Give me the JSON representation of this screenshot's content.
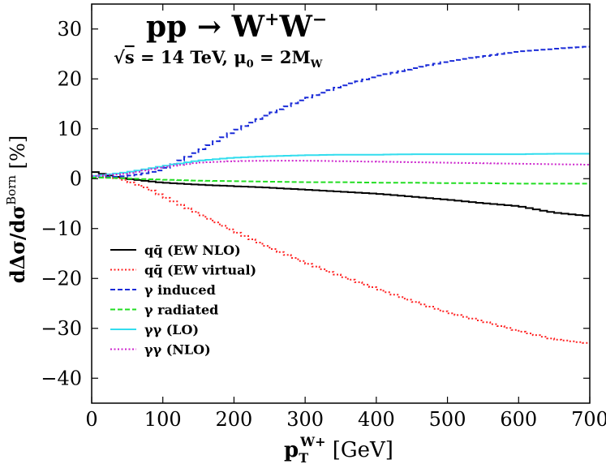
{
  "chart_data": {
    "type": "line",
    "title": "pp → W⁺W⁻",
    "subtitle": "√s = 14 TeV, μ₀ = 2M_W",
    "title_parts": {
      "main": "pp → W",
      "sup1": "+",
      "mid": "W",
      "sup2": "−"
    },
    "subtitle_parts": {
      "root": "√",
      "s": "s",
      "rest": " = 14 TeV, μ",
      "sub0": "0",
      "eq": " = 2M",
      "subW": "W"
    },
    "xlabel": "p_T^{W+} [GeV]",
    "ylabel": "dΔσ/dσ^Born [%]",
    "xlabel_parts": {
      "p": "p",
      "sub": "T",
      "sup": "W+",
      "unit": " [GeV]"
    },
    "ylabel_parts": {
      "d1": "dΔσ/dσ",
      "sup": "Born",
      "unit": " [%]"
    },
    "xlim": [
      0,
      700
    ],
    "ylim": [
      -45,
      35
    ],
    "xticks": [
      0,
      100,
      200,
      300,
      400,
      500,
      600,
      700
    ],
    "yticks": [
      -40,
      -30,
      -20,
      -10,
      0,
      10,
      20,
      30
    ],
    "xticklabels": [
      "0",
      "100",
      "200",
      "300",
      "400",
      "500",
      "600",
      "700"
    ],
    "yticklabels": [
      "−40",
      "−30",
      "−20",
      "−10",
      "0",
      "10",
      "20",
      "30"
    ],
    "legend_position": "bottom-left",
    "x": [
      0,
      20,
      40,
      60,
      80,
      100,
      150,
      200,
      250,
      300,
      350,
      400,
      450,
      500,
      550,
      600,
      650,
      700
    ],
    "series": [
      {
        "name": "qq̄ (EW NLO)",
        "color": "#000000",
        "dash": "solid",
        "values": [
          1.5,
          0.8,
          0.2,
          -0.2,
          -0.5,
          -0.8,
          -1.2,
          -1.5,
          -1.8,
          -2.2,
          -2.6,
          -3.0,
          -3.6,
          -4.2,
          -4.9,
          -5.5,
          -6.8,
          -7.5
        ]
      },
      {
        "name": "qq̄ (EW virtual)",
        "color": "#ff2222",
        "dash": "dotted",
        "values": [
          0.5,
          0.3,
          0,
          -1.0,
          -2.0,
          -3.5,
          -7.0,
          -10.5,
          -13.8,
          -16.8,
          -19.5,
          -22.0,
          -24.5,
          -26.8,
          -28.6,
          -30.5,
          -32.2,
          -33.0
        ]
      },
      {
        "name": "γ induced",
        "color": "#1a2bd8",
        "dash": "dashed",
        "values": [
          0.2,
          0.3,
          0.4,
          0.7,
          1.2,
          1.8,
          5.5,
          9.5,
          13.0,
          16.0,
          18.5,
          20.5,
          22.0,
          23.5,
          24.5,
          25.5,
          26.0,
          26.5
        ]
      },
      {
        "name": "γ radiated",
        "color": "#22dd22",
        "dash": "dashed",
        "values": [
          0.2,
          0.2,
          0.1,
          0,
          -0.1,
          -0.2,
          -0.4,
          -0.5,
          -0.6,
          -0.7,
          -0.7,
          -0.8,
          -0.8,
          -0.9,
          -0.9,
          -1.0,
          -1.0,
          -1.0
        ]
      },
      {
        "name": "γγ (LO)",
        "color": "#33ddee",
        "dash": "solid",
        "values": [
          0.5,
          0.8,
          1.1,
          1.5,
          2.0,
          2.5,
          3.6,
          4.2,
          4.5,
          4.7,
          4.8,
          4.8,
          4.9,
          4.9,
          4.9,
          4.9,
          5.0,
          5.0
        ]
      },
      {
        "name": "γγ (NLO)",
        "color": "#cc22cc",
        "dash": "dotted",
        "values": [
          0.5,
          0.7,
          0.9,
          1.2,
          1.8,
          2.3,
          3.2,
          3.5,
          3.6,
          3.6,
          3.5,
          3.4,
          3.3,
          3.2,
          3.1,
          3.0,
          2.9,
          2.8
        ]
      }
    ]
  }
}
